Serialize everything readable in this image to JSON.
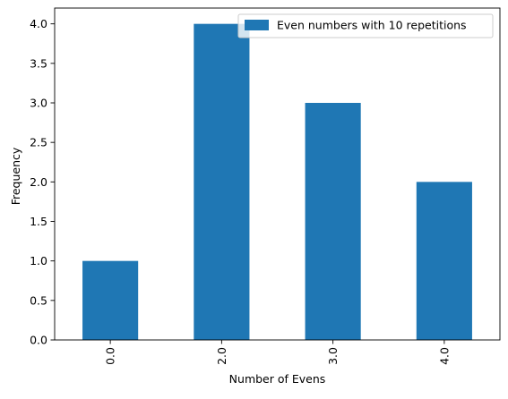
{
  "chart_data": {
    "type": "bar",
    "categories": [
      "0.0",
      "2.0",
      "3.0",
      "4.0"
    ],
    "series": [
      {
        "name": "Even numbers with 10 repetitions",
        "values": [
          1,
          4,
          3,
          2
        ],
        "color": "#1f77b4"
      }
    ],
    "xlabel": "Number of Evens",
    "ylabel": "Frequency",
    "ylim": [
      0,
      4.2
    ],
    "yticks": [
      "0.0",
      "0.5",
      "1.0",
      "1.5",
      "2.0",
      "2.5",
      "3.0",
      "3.5",
      "4.0"
    ],
    "ytick_values": [
      0,
      0.5,
      1,
      1.5,
      2,
      2.5,
      3,
      3.5,
      4
    ],
    "x_tick_rotation": "vertical",
    "grid": false,
    "legend_position": "top-right"
  }
}
